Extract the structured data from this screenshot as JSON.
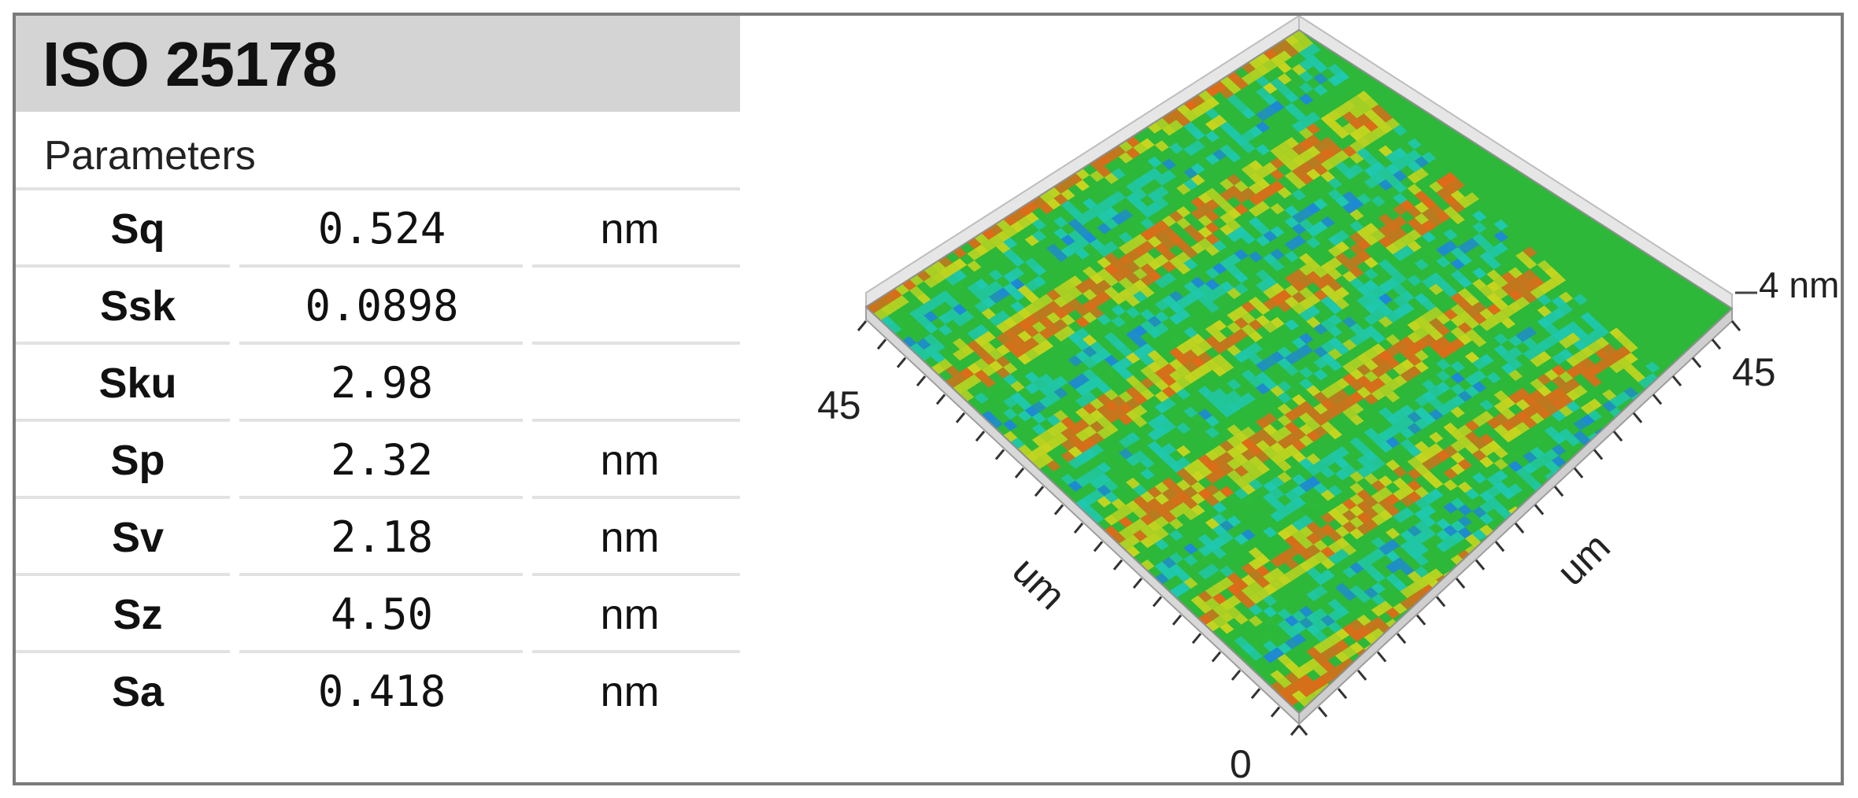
{
  "title": "ISO 25178",
  "section_label": "Parameters",
  "parameters": [
    {
      "name": "Sq",
      "value": "0.524",
      "unit": "nm"
    },
    {
      "name": "Ssk",
      "value": "0.0898",
      "unit": ""
    },
    {
      "name": "Sku",
      "value": "2.98",
      "unit": ""
    },
    {
      "name": "Sp",
      "value": "2.32",
      "unit": "nm"
    },
    {
      "name": "Sv",
      "value": "2.18",
      "unit": "nm"
    },
    {
      "name": "Sz",
      "value": "4.50",
      "unit": "nm"
    },
    {
      "name": "Sa",
      "value": "0.418",
      "unit": "nm"
    }
  ],
  "surface_plot": {
    "z_label": "4 nm",
    "left_axis_max": "45",
    "right_axis_max": "45",
    "origin_label": "0",
    "left_axis_unit": "um",
    "right_axis_unit": "um",
    "colors": {
      "low": "#1e88d8",
      "mid_low": "#1fc8b0",
      "mid": "#2db83a",
      "mid_high": "#c8d51e",
      "high": "#e06a18"
    }
  }
}
